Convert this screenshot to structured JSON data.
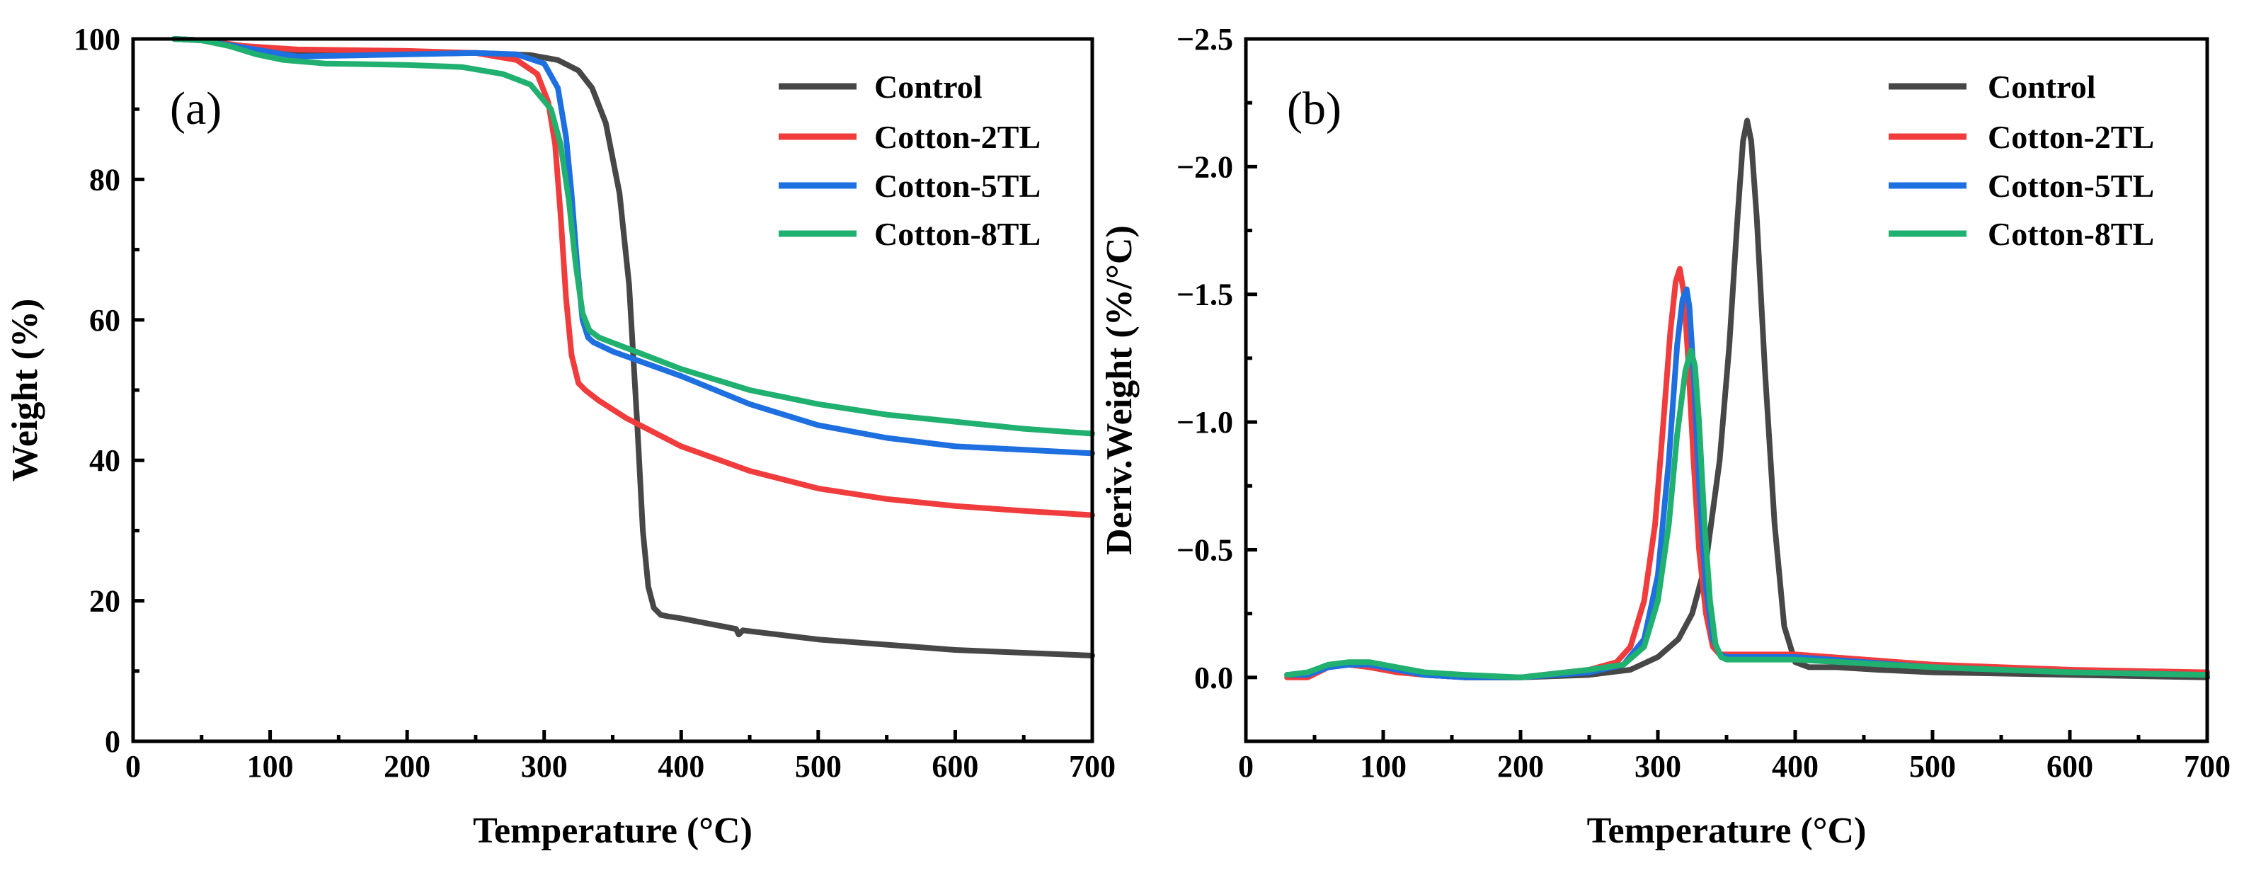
{
  "colors": {
    "Control": "#474747",
    "Cotton-2TL": "#f03c3c",
    "Cotton-5TL": "#1e6fe0",
    "Cotton-8TL": "#20b070"
  },
  "chart_data": [
    {
      "type": "line",
      "panel_label": "(a)",
      "title": "",
      "xlabel": "Temperature (°C)",
      "ylabel": "Weight (%)",
      "xlim": [
        0,
        700
      ],
      "ylim": [
        0,
        100
      ],
      "y_inverted": false,
      "xticks": [
        0,
        100,
        200,
        300,
        400,
        500,
        600,
        700
      ],
      "yticks": [
        0,
        20,
        40,
        60,
        80,
        100
      ],
      "ytick_labels": [
        "0",
        "20",
        "40",
        "60",
        "80",
        "100"
      ],
      "legend_position": "top-right",
      "series": [
        {
          "name": "Control",
          "x": [
            30,
            50,
            80,
            120,
            200,
            250,
            290,
            310,
            325,
            335,
            345,
            355,
            362,
            368,
            372,
            376,
            380,
            385,
            390,
            400,
            440,
            442,
            445,
            500,
            600,
            700
          ],
          "y": [
            100,
            99.8,
            99,
            98.2,
            98,
            98,
            97.7,
            97,
            95.5,
            93,
            88,
            78,
            65,
            45,
            30,
            22,
            19,
            18,
            17.8,
            17.5,
            16,
            15.2,
            15.8,
            14.5,
            13,
            12.2
          ]
        },
        {
          "name": "Cotton-2TL",
          "x": [
            30,
            50,
            80,
            120,
            200,
            250,
            280,
            295,
            303,
            308,
            312,
            316,
            320,
            325,
            330,
            340,
            360,
            400,
            450,
            500,
            550,
            600,
            650,
            700
          ],
          "y": [
            100,
            99.8,
            99,
            98.5,
            98.3,
            98,
            97,
            95,
            91,
            85,
            75,
            63,
            55,
            51,
            50,
            48.5,
            46,
            42,
            38.5,
            36,
            34.5,
            33.5,
            32.8,
            32.2
          ]
        },
        {
          "name": "Cotton-5TL",
          "x": [
            30,
            50,
            80,
            120,
            200,
            250,
            280,
            300,
            310,
            316,
            320,
            324,
            328,
            332,
            336,
            350,
            400,
            450,
            500,
            550,
            600,
            650,
            700
          ],
          "y": [
            100,
            99.8,
            98.8,
            97.5,
            97.8,
            98,
            97.8,
            96.5,
            93,
            86,
            78,
            68,
            60,
            57.5,
            56.8,
            55.5,
            52,
            48,
            45,
            43.2,
            42,
            41.5,
            41
          ]
        },
        {
          "name": "Cotton-8TL",
          "x": [
            30,
            50,
            70,
            90,
            110,
            140,
            200,
            240,
            270,
            290,
            305,
            312,
            318,
            323,
            328,
            333,
            340,
            360,
            400,
            450,
            500,
            550,
            600,
            650,
            700
          ],
          "y": [
            100,
            99.8,
            99,
            97.8,
            97,
            96.5,
            96.3,
            96,
            95,
            93.5,
            90,
            85,
            77,
            68,
            61,
            58.5,
            57.5,
            56,
            53,
            50,
            48,
            46.5,
            45.5,
            44.5,
            43.8
          ]
        }
      ]
    },
    {
      "type": "line",
      "panel_label": "(b)",
      "title": "",
      "xlabel": "Temperature (°C)",
      "ylabel": "Deriv.Weight (%/°C)",
      "xlim": [
        0,
        700
      ],
      "ylim": [
        0.25,
        -2.5
      ],
      "y_inverted": true,
      "xticks": [
        0,
        100,
        200,
        300,
        400,
        500,
        600,
        700
      ],
      "yticks": [
        0.0,
        -0.5,
        -1.0,
        -1.5,
        -2.0,
        -2.5
      ],
      "ytick_labels": [
        "0.0",
        "−0.5",
        "−1.0",
        "−1.5",
        "−2.0",
        "−2.5"
      ],
      "legend_position": "top-right",
      "series": [
        {
          "name": "Control",
          "x": [
            30,
            45,
            60,
            75,
            90,
            110,
            130,
            160,
            200,
            250,
            280,
            300,
            315,
            325,
            335,
            345,
            352,
            358,
            362,
            365,
            368,
            372,
            378,
            385,
            392,
            400,
            410,
            430,
            460,
            500,
            600,
            700
          ],
          "y": [
            -0.01,
            -0.01,
            -0.04,
            -0.05,
            -0.05,
            -0.03,
            -0.01,
            0.0,
            0.0,
            -0.01,
            -0.03,
            -0.08,
            -0.15,
            -0.25,
            -0.45,
            -0.85,
            -1.3,
            -1.8,
            -2.1,
            -2.18,
            -2.1,
            -1.8,
            -1.2,
            -0.6,
            -0.2,
            -0.06,
            -0.04,
            -0.04,
            -0.03,
            -0.02,
            -0.01,
            0.0
          ]
        },
        {
          "name": "Cotton-2TL",
          "x": [
            30,
            45,
            60,
            75,
            90,
            110,
            130,
            160,
            200,
            250,
            270,
            280,
            290,
            298,
            304,
            309,
            313,
            316,
            319,
            322,
            326,
            330,
            335,
            340,
            345,
            350,
            400,
            500,
            600,
            700
          ],
          "y": [
            0.0,
            0.0,
            -0.04,
            -0.05,
            -0.04,
            -0.02,
            -0.01,
            0.0,
            0.0,
            -0.03,
            -0.06,
            -0.12,
            -0.3,
            -0.6,
            -1.0,
            -1.35,
            -1.55,
            -1.6,
            -1.5,
            -1.25,
            -0.85,
            -0.5,
            -0.25,
            -0.12,
            -0.09,
            -0.09,
            -0.09,
            -0.05,
            -0.03,
            -0.02
          ]
        },
        {
          "name": "Cotton-5TL",
          "x": [
            30,
            45,
            60,
            75,
            90,
            110,
            130,
            160,
            200,
            250,
            275,
            290,
            300,
            308,
            314,
            318,
            321,
            323,
            326,
            330,
            335,
            340,
            345,
            350,
            400,
            500,
            600,
            700
          ],
          "y": [
            -0.01,
            -0.01,
            -0.04,
            -0.05,
            -0.05,
            -0.03,
            -0.01,
            0.0,
            0.0,
            -0.02,
            -0.05,
            -0.15,
            -0.4,
            -0.85,
            -1.3,
            -1.48,
            -1.52,
            -1.45,
            -1.2,
            -0.75,
            -0.35,
            -0.15,
            -0.09,
            -0.08,
            -0.08,
            -0.04,
            -0.02,
            -0.01
          ]
        },
        {
          "name": "Cotton-8TL",
          "x": [
            30,
            45,
            60,
            75,
            90,
            110,
            130,
            160,
            200,
            250,
            275,
            290,
            300,
            308,
            314,
            320,
            324,
            327,
            330,
            334,
            338,
            342,
            346,
            350,
            400,
            500,
            600,
            700
          ],
          "y": [
            -0.01,
            -0.02,
            -0.05,
            -0.06,
            -0.06,
            -0.04,
            -0.02,
            -0.01,
            0.0,
            -0.03,
            -0.05,
            -0.12,
            -0.3,
            -0.6,
            -0.95,
            -1.2,
            -1.28,
            -1.22,
            -1.0,
            -0.6,
            -0.3,
            -0.13,
            -0.08,
            -0.07,
            -0.07,
            -0.04,
            -0.02,
            -0.01
          ]
        }
      ]
    }
  ]
}
